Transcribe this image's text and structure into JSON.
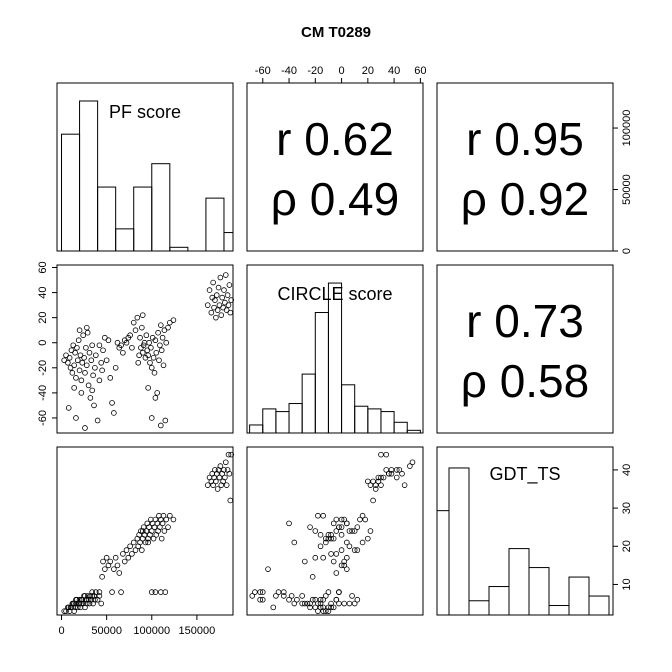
{
  "chart_data": {
    "type": "scatter-matrix",
    "title": "CM T0289",
    "variables": [
      "PF score",
      "CIRCLE score",
      "GDT_TS"
    ],
    "ranges": {
      "PF score": [
        -5000,
        190000
      ],
      "CIRCLE score": [
        -72,
        62
      ],
      "GDT_TS": [
        2,
        46
      ]
    },
    "tick_labels": {
      "PF score": [
        "0",
        "50000",
        "100000",
        "150000"
      ],
      "CIRCLE score": [
        "-60",
        "-40",
        "-20",
        "0",
        "20",
        "40",
        "60"
      ],
      "GDT_TS": [
        "10",
        "20",
        "30",
        "40"
      ],
      "hist_density": [
        "0",
        "50000",
        "100000"
      ]
    },
    "correlations": [
      {
        "pair": [
          "PF score",
          "CIRCLE score"
        ],
        "r_label": "r 0.62",
        "rho_label": "ρ 0.49"
      },
      {
        "pair": [
          "PF score",
          "GDT_TS"
        ],
        "r_label": "r 0.95",
        "rho_label": "ρ 0.92"
      },
      {
        "pair": [
          "CIRCLE score",
          "GDT_TS"
        ],
        "r_label": "r 0.73",
        "rho_label": "ρ 0.58"
      }
    ],
    "histograms": {
      "PF score": {
        "edges": [
          0,
          20000,
          40000,
          60000,
          80000,
          100000,
          120000,
          140000,
          160000,
          180000,
          200000
        ],
        "heights": [
          95000,
          122000,
          52000,
          18000,
          52000,
          71000,
          3000,
          0,
          43000,
          15000
        ],
        "ylim": [
          0,
          135000
        ]
      },
      "CIRCLE score": {
        "edges": [
          -70,
          -60,
          -50,
          -40,
          -30,
          -20,
          -10,
          0,
          10,
          20,
          30,
          40,
          50,
          60
        ],
        "heights": [
          3,
          9,
          8,
          11,
          22,
          45,
          56,
          18,
          10,
          9,
          8,
          4,
          1
        ],
        "ylim": [
          0,
          62
        ]
      },
      "GDT_TS": {
        "edges": [
          0,
          5,
          10,
          15,
          20,
          25,
          30,
          35,
          40,
          45
        ],
        "heights": [
          22,
          31,
          3,
          6,
          14,
          10,
          2,
          8,
          4
        ],
        "ylim": [
          0,
          35
        ]
      }
    },
    "points": [
      {
        "pf": 3000,
        "circle": -14,
        "gdt": 3
      },
      {
        "pf": 5000,
        "circle": -10,
        "gdt": 3
      },
      {
        "pf": 7000,
        "circle": -16,
        "gdt": 4
      },
      {
        "pf": 9000,
        "circle": -12,
        "gdt": 3
      },
      {
        "pf": 10000,
        "circle": -20,
        "gdt": 4
      },
      {
        "pf": 11000,
        "circle": -6,
        "gdt": 4
      },
      {
        "pf": 12000,
        "circle": -24,
        "gdt": 5
      },
      {
        "pf": 13000,
        "circle": -2,
        "gdt": 5
      },
      {
        "pf": 14000,
        "circle": -18,
        "gdt": 3
      },
      {
        "pf": 15000,
        "circle": -8,
        "gdt": 4
      },
      {
        "pf": 16000,
        "circle": -28,
        "gdt": 5
      },
      {
        "pf": 17000,
        "circle": -4,
        "gdt": 6
      },
      {
        "pf": 18000,
        "circle": -14,
        "gdt": 4
      },
      {
        "pf": 19000,
        "circle": 2,
        "gdt": 5
      },
      {
        "pf": 20000,
        "circle": -22,
        "gdt": 6
      },
      {
        "pf": 21000,
        "circle": -10,
        "gdt": 4
      },
      {
        "pf": 22000,
        "circle": -30,
        "gdt": 5
      },
      {
        "pf": 23000,
        "circle": -16,
        "gdt": 6
      },
      {
        "pf": 24000,
        "circle": 6,
        "gdt": 5
      },
      {
        "pf": 25000,
        "circle": -12,
        "gdt": 7
      },
      {
        "pf": 26000,
        "circle": -24,
        "gdt": 4
      },
      {
        "pf": 27000,
        "circle": -4,
        "gdt": 6
      },
      {
        "pf": 28000,
        "circle": -18,
        "gdt": 5
      },
      {
        "pf": 29000,
        "circle": 8,
        "gdt": 7
      },
      {
        "pf": 30000,
        "circle": -34,
        "gdt": 6
      },
      {
        "pf": 31000,
        "circle": -8,
        "gdt": 5
      },
      {
        "pf": 32000,
        "circle": -44,
        "gdt": 7
      },
      {
        "pf": 33000,
        "circle": -14,
        "gdt": 6
      },
      {
        "pf": 34000,
        "circle": -2,
        "gdt": 8
      },
      {
        "pf": 35000,
        "circle": -26,
        "gdt": 5
      },
      {
        "pf": 36000,
        "circle": -50,
        "gdt": 7
      },
      {
        "pf": 37000,
        "circle": -20,
        "gdt": 6
      },
      {
        "pf": 38000,
        "circle": -10,
        "gdt": 8
      },
      {
        "pf": 40000,
        "circle": -62,
        "gdt": 6
      },
      {
        "pf": 42000,
        "circle": -30,
        "gdt": 7
      },
      {
        "pf": 44000,
        "circle": -16,
        "gdt": 5
      },
      {
        "pf": 8000,
        "circle": -52,
        "gdt": 4
      },
      {
        "pf": 16000,
        "circle": -60,
        "gdt": 6
      },
      {
        "pf": 26000,
        "circle": -68,
        "gdt": 7
      },
      {
        "pf": 20000,
        "circle": 10,
        "gdt": 5
      },
      {
        "pf": 28000,
        "circle": 12,
        "gdt": 6
      },
      {
        "pf": 14000,
        "circle": -36,
        "gdt": 5
      },
      {
        "pf": 22000,
        "circle": -40,
        "gdt": 6
      },
      {
        "pf": 34000,
        "circle": -38,
        "gdt": 7
      },
      {
        "pf": 42000,
        "circle": -2,
        "gdt": 8
      },
      {
        "pf": 45000,
        "circle": -22,
        "gdt": 12
      },
      {
        "pf": 46000,
        "circle": -6,
        "gdt": 16
      },
      {
        "pf": 48000,
        "circle": 4,
        "gdt": 14
      },
      {
        "pf": 50000,
        "circle": -14,
        "gdt": 17
      },
      {
        "pf": 52000,
        "circle": 2,
        "gdt": 15
      },
      {
        "pf": 54000,
        "circle": -28,
        "gdt": 16
      },
      {
        "pf": 56000,
        "circle": -48,
        "gdt": 8
      },
      {
        "pf": 58000,
        "circle": -56,
        "gdt": 14
      },
      {
        "pf": 60000,
        "circle": -20,
        "gdt": 17
      },
      {
        "pf": 62000,
        "circle": 0,
        "gdt": 15
      },
      {
        "pf": 64000,
        "circle": -4,
        "gdt": 13
      },
      {
        "pf": 66000,
        "circle": -2,
        "gdt": 8
      },
      {
        "pf": 68000,
        "circle": -8,
        "gdt": 18
      },
      {
        "pf": 70000,
        "circle": 2,
        "gdt": 16
      },
      {
        "pf": 72000,
        "circle": 0,
        "gdt": 19
      },
      {
        "pf": 74000,
        "circle": 4,
        "gdt": 17
      },
      {
        "pf": 76000,
        "circle": 6,
        "gdt": 20
      },
      {
        "pf": 78000,
        "circle": -4,
        "gdt": 18
      },
      {
        "pf": 80000,
        "circle": 16,
        "gdt": 21
      },
      {
        "pf": 82000,
        "circle": 10,
        "gdt": 19
      },
      {
        "pf": 84000,
        "circle": 20,
        "gdt": 22
      },
      {
        "pf": 85000,
        "circle": -16,
        "gdt": 20
      },
      {
        "pf": 86000,
        "circle": -10,
        "gdt": 23
      },
      {
        "pf": 87000,
        "circle": 4,
        "gdt": 21
      },
      {
        "pf": 88000,
        "circle": -4,
        "gdt": 24
      },
      {
        "pf": 89000,
        "circle": 12,
        "gdt": 19
      },
      {
        "pf": 90000,
        "circle": -8,
        "gdt": 22
      },
      {
        "pf": 91000,
        "circle": -2,
        "gdt": 25
      },
      {
        "pf": 92000,
        "circle": 0,
        "gdt": 23
      },
      {
        "pf": 93000,
        "circle": -12,
        "gdt": 21
      },
      {
        "pf": 94000,
        "circle": 6,
        "gdt": 24
      },
      {
        "pf": 95000,
        "circle": -6,
        "gdt": 26
      },
      {
        "pf": 96000,
        "circle": -10,
        "gdt": 22
      },
      {
        "pf": 97000,
        "circle": 0,
        "gdt": 25
      },
      {
        "pf": 98000,
        "circle": -16,
        "gdt": 23
      },
      {
        "pf": 99000,
        "circle": -4,
        "gdt": 27
      },
      {
        "pf": 100000,
        "circle": -20,
        "gdt": 24
      },
      {
        "pf": 101000,
        "circle": 4,
        "gdt": 26
      },
      {
        "pf": 102000,
        "circle": -12,
        "gdt": 22
      },
      {
        "pf": 103000,
        "circle": -24,
        "gdt": 25
      },
      {
        "pf": 104000,
        "circle": 2,
        "gdt": 27
      },
      {
        "pf": 105000,
        "circle": -8,
        "gdt": 23
      },
      {
        "pf": 106000,
        "circle": -40,
        "gdt": 26
      },
      {
        "pf": 107000,
        "circle": 8,
        "gdt": 24
      },
      {
        "pf": 108000,
        "circle": -14,
        "gdt": 28
      },
      {
        "pf": 109000,
        "circle": -2,
        "gdt": 25
      },
      {
        "pf": 110000,
        "circle": 14,
        "gdt": 27
      },
      {
        "pf": 111000,
        "circle": -6,
        "gdt": 22
      },
      {
        "pf": 112000,
        "circle": 4,
        "gdt": 26
      },
      {
        "pf": 113000,
        "circle": -18,
        "gdt": 28
      },
      {
        "pf": 114000,
        "circle": 10,
        "gdt": 24
      },
      {
        "pf": 115000,
        "circle": -62,
        "gdt": 8
      },
      {
        "pf": 116000,
        "circle": 0,
        "gdt": 27
      },
      {
        "pf": 118000,
        "circle": 12,
        "gdt": 25
      },
      {
        "pf": 120000,
        "circle": 16,
        "gdt": 28
      },
      {
        "pf": 104000,
        "circle": -44,
        "gdt": 8
      },
      {
        "pf": 110000,
        "circle": -66,
        "gdt": 8
      },
      {
        "pf": 96000,
        "circle": -36,
        "gdt": 21
      },
      {
        "pf": 100000,
        "circle": -60,
        "gdt": 8
      },
      {
        "pf": 90000,
        "circle": 22,
        "gdt": 24
      },
      {
        "pf": 124000,
        "circle": 18,
        "gdt": 27
      },
      {
        "pf": 162000,
        "circle": 30,
        "gdt": 36
      },
      {
        "pf": 164000,
        "circle": 42,
        "gdt": 38
      },
      {
        "pf": 166000,
        "circle": 24,
        "gdt": 37
      },
      {
        "pf": 167000,
        "circle": 36,
        "gdt": 39
      },
      {
        "pf": 168000,
        "circle": 48,
        "gdt": 36
      },
      {
        "pf": 169000,
        "circle": 28,
        "gdt": 38
      },
      {
        "pf": 170000,
        "circle": 34,
        "gdt": 40
      },
      {
        "pf": 171000,
        "circle": 20,
        "gdt": 37
      },
      {
        "pf": 172000,
        "circle": 38,
        "gdt": 39
      },
      {
        "pf": 173000,
        "circle": 26,
        "gdt": 35
      },
      {
        "pf": 174000,
        "circle": 44,
        "gdt": 40
      },
      {
        "pf": 175000,
        "circle": 30,
        "gdt": 38
      },
      {
        "pf": 176000,
        "circle": 52,
        "gdt": 41
      },
      {
        "pf": 177000,
        "circle": 22,
        "gdt": 36
      },
      {
        "pf": 178000,
        "circle": 36,
        "gdt": 39
      },
      {
        "pf": 179000,
        "circle": 28,
        "gdt": 37
      },
      {
        "pf": 180000,
        "circle": 42,
        "gdt": 40
      },
      {
        "pf": 181000,
        "circle": 32,
        "gdt": 38
      },
      {
        "pf": 182000,
        "circle": 54,
        "gdt": 42
      },
      {
        "pf": 183000,
        "circle": 26,
        "gdt": 36
      },
      {
        "pf": 184000,
        "circle": 38,
        "gdt": 40
      },
      {
        "pf": 185000,
        "circle": 30,
        "gdt": 44
      },
      {
        "pf": 186000,
        "circle": 46,
        "gdt": 39
      },
      {
        "pf": 187000,
        "circle": 24,
        "gdt": 32
      },
      {
        "pf": 188000,
        "circle": 34,
        "gdt": 44
      }
    ]
  }
}
